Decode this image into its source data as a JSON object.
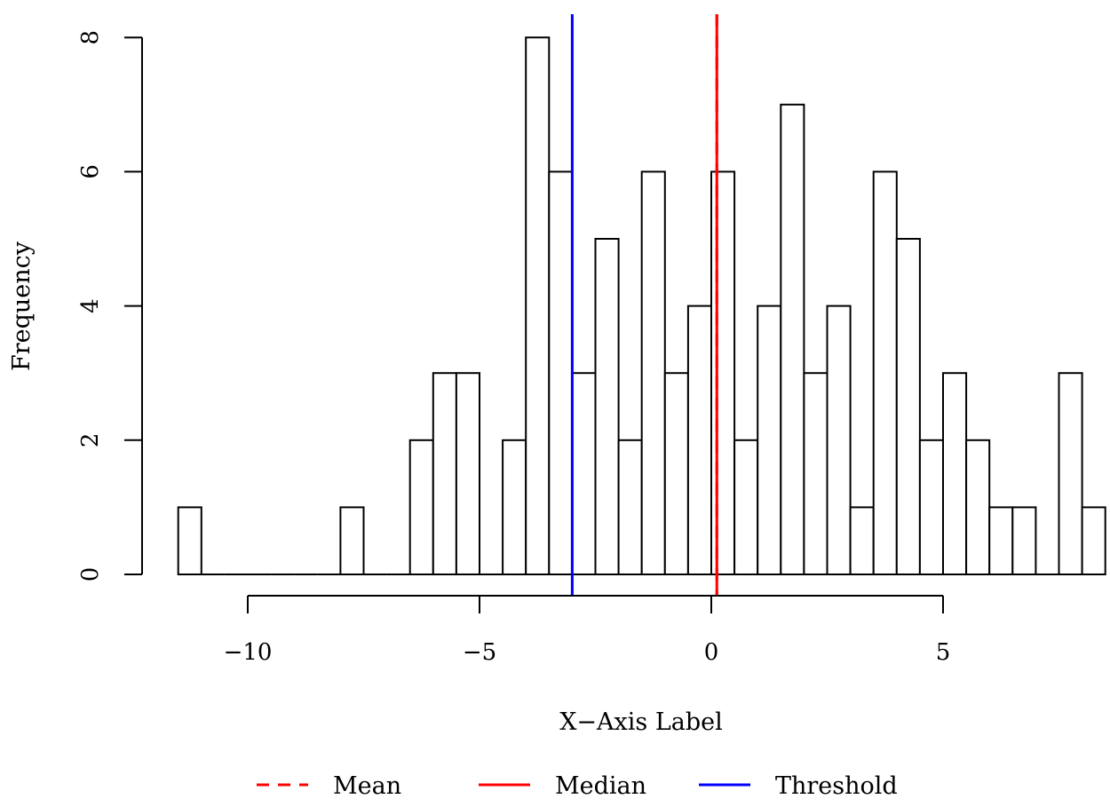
{
  "chart_data": {
    "type": "bar",
    "subtype": "histogram",
    "xlabel": "X−Axis Label",
    "ylabel": "Frequency",
    "xlim": [
      -11.5,
      8.5
    ],
    "ylim": [
      0,
      8
    ],
    "x_ticks": [
      -10,
      -5,
      0,
      5
    ],
    "x_tick_labels": [
      "−10",
      "−5",
      "0",
      "5"
    ],
    "y_ticks": [
      0,
      2,
      4,
      6,
      8
    ],
    "y_tick_labels": [
      "0",
      "2",
      "4",
      "6",
      "8"
    ],
    "bin_width": 0.5,
    "bins": [
      {
        "start": -11.5,
        "count": 1
      },
      {
        "start": -11.0,
        "count": 0
      },
      {
        "start": -10.5,
        "count": 0
      },
      {
        "start": -10.0,
        "count": 0
      },
      {
        "start": -9.5,
        "count": 0
      },
      {
        "start": -9.0,
        "count": 0
      },
      {
        "start": -8.5,
        "count": 0
      },
      {
        "start": -8.0,
        "count": 1
      },
      {
        "start": -7.5,
        "count": 0
      },
      {
        "start": -7.0,
        "count": 0
      },
      {
        "start": -6.5,
        "count": 2
      },
      {
        "start": -6.0,
        "count": 3
      },
      {
        "start": -5.5,
        "count": 3
      },
      {
        "start": -5.0,
        "count": 0
      },
      {
        "start": -4.5,
        "count": 2
      },
      {
        "start": -4.0,
        "count": 8
      },
      {
        "start": -3.5,
        "count": 6
      },
      {
        "start": -3.0,
        "count": 3
      },
      {
        "start": -2.5,
        "count": 5
      },
      {
        "start": -2.0,
        "count": 2
      },
      {
        "start": -1.5,
        "count": 6
      },
      {
        "start": -1.0,
        "count": 3
      },
      {
        "start": -0.5,
        "count": 4
      },
      {
        "start": 0.0,
        "count": 6
      },
      {
        "start": 0.5,
        "count": 2
      },
      {
        "start": 1.0,
        "count": 4
      },
      {
        "start": 1.5,
        "count": 7
      },
      {
        "start": 2.0,
        "count": 3
      },
      {
        "start": 2.5,
        "count": 4
      },
      {
        "start": 3.0,
        "count": 1
      },
      {
        "start": 3.5,
        "count": 6
      },
      {
        "start": 4.0,
        "count": 5
      },
      {
        "start": 4.5,
        "count": 2
      },
      {
        "start": 5.0,
        "count": 3
      },
      {
        "start": 5.5,
        "count": 2
      },
      {
        "start": 6.0,
        "count": 1
      },
      {
        "start": 6.5,
        "count": 1
      },
      {
        "start": 7.0,
        "count": 0
      },
      {
        "start": 7.5,
        "count": 3
      },
      {
        "start": 8.0,
        "count": 1
      }
    ],
    "vlines": [
      {
        "name": "Mean",
        "x": 0.12,
        "color": "#ff0000",
        "style": "dashed"
      },
      {
        "name": "Median",
        "x": 0.12,
        "color": "#ff0000",
        "style": "solid"
      },
      {
        "name": "Threshold",
        "x": -3.0,
        "color": "#0000ff",
        "style": "solid"
      }
    ],
    "legend": {
      "placement": "bottom",
      "entries": [
        {
          "label": "Mean",
          "color": "#ff0000",
          "style": "dashed"
        },
        {
          "label": "Median",
          "color": "#ff0000",
          "style": "solid"
        },
        {
          "label": "Threshold",
          "color": "#0000ff",
          "style": "solid"
        }
      ]
    }
  }
}
